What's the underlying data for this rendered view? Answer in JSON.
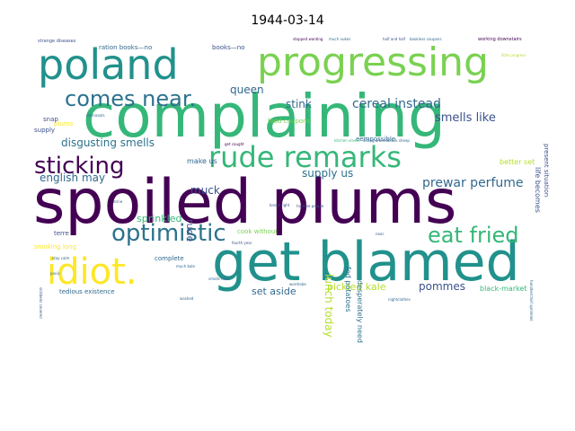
{
  "chart_data": {
    "type": "wordcloud",
    "title": "1944-03-14",
    "background": "#ffffff",
    "words": [
      {
        "text": "complaining",
        "weight": 100,
        "color": "#35b779"
      },
      {
        "text": "spoiled plums",
        "weight": 98,
        "color": "#440154"
      },
      {
        "text": "get blamed",
        "weight": 88,
        "color": "#21918c"
      },
      {
        "text": "progressing",
        "weight": 62,
        "color": "#7ad151"
      },
      {
        "text": "poland",
        "weight": 62,
        "color": "#21918c"
      },
      {
        "text": "rude remarks",
        "weight": 55,
        "color": "#35b779"
      },
      {
        "text": "idiot.",
        "weight": 52,
        "color": "#fde725"
      },
      {
        "text": "optimistic",
        "weight": 45,
        "color": "#2c728e"
      },
      {
        "text": "sticking",
        "weight": 42,
        "color": "#440154"
      },
      {
        "text": "eat fried",
        "weight": 40,
        "color": "#35b779"
      },
      {
        "text": "comes near.",
        "weight": 38,
        "color": "#2c728e"
      },
      {
        "text": "prewar perfume",
        "weight": 28,
        "color": "#31688e"
      },
      {
        "text": "cereal instead",
        "weight": 26,
        "color": "#31688e"
      },
      {
        "text": "smells like",
        "weight": 24,
        "color": "#3b528b"
      },
      {
        "text": "disgusting smells",
        "weight": 22,
        "color": "#2c728e"
      },
      {
        "text": "pommes",
        "weight": 22,
        "color": "#3b528b"
      },
      {
        "text": "english may",
        "weight": 21,
        "color": "#31688e"
      },
      {
        "text": "lunch today",
        "weight": 21,
        "color": "#b5de2b"
      },
      {
        "text": "muck",
        "weight": 21,
        "color": "#3b528b"
      },
      {
        "text": "stink",
        "weight": 20,
        "color": "#31688e"
      },
      {
        "text": "queen",
        "weight": 20,
        "color": "#31688e"
      },
      {
        "text": "supply us",
        "weight": 19,
        "color": "#2c728e"
      },
      {
        "text": "set aside",
        "weight": 19,
        "color": "#31688e"
      },
      {
        "text": "pickled kale",
        "weight": 19,
        "color": "#b5de2b"
      },
      {
        "text": "sprinkled",
        "weight": 18,
        "color": "#35b779"
      },
      {
        "text": "rude",
        "weight": 18,
        "color": "#3b528b"
      },
      {
        "text": "fed potatoes",
        "weight": 12,
        "color": "#2c728e"
      },
      {
        "text": "desperately need",
        "weight": 12,
        "color": "#2c728e"
      },
      {
        "text": "make us",
        "weight": 10,
        "color": "#31688e"
      },
      {
        "text": "better set",
        "weight": 11,
        "color": "#b5de2b"
      },
      {
        "text": "life becomes",
        "weight": 11,
        "color": "#3b528b"
      },
      {
        "text": "present situation",
        "weight": 10,
        "color": "#3b528b"
      },
      {
        "text": "black-market",
        "weight": 11,
        "color": "#35b779"
      },
      {
        "text": "tedious existence",
        "weight": 11,
        "color": "#31688e"
      },
      {
        "text": "smoking long",
        "weight": 11,
        "color": "#fde725"
      },
      {
        "text": "complete",
        "weight": 11,
        "color": "#31688e"
      },
      {
        "text": "terre",
        "weight": 11,
        "color": "#3b528b"
      },
      {
        "text": "cook without",
        "weight": 10,
        "color": "#7ad151"
      },
      {
        "text": "food coupons",
        "weight": 10,
        "color": "#7ad151"
      },
      {
        "text": "eempossible",
        "weight": 10,
        "color": "#31688e"
      },
      {
        "text": "ration books—no",
        "weight": 9,
        "color": "#31688e"
      },
      {
        "text": "books—no",
        "weight": 9,
        "color": "#3b528b"
      },
      {
        "text": "plums",
        "weight": 10,
        "color": "#fde725"
      },
      {
        "text": "snap",
        "weight": 10,
        "color": "#3b528b"
      },
      {
        "text": "supply",
        "weight": 10,
        "color": "#3b528b"
      },
      {
        "text": "strange diseases",
        "weight": 6,
        "color": "#3b528b"
      },
      {
        "text": "stopped wanting",
        "weight": 5,
        "color": "#440154"
      },
      {
        "text": "much nukes",
        "weight": 5,
        "color": "#31688e"
      },
      {
        "text": "half and half",
        "weight": 5,
        "color": "#3b528b"
      },
      {
        "text": "bookless coupons",
        "weight": 5,
        "color": "#31688e"
      },
      {
        "text": "working downstairs",
        "weight": 6,
        "color": "#440154"
      },
      {
        "text": "kitchen smells",
        "weight": 5,
        "color": "#35b779"
      },
      {
        "text": "sitting around",
        "weight": 5,
        "color": "#31688e"
      },
      {
        "text": "black sheep",
        "weight": 5,
        "color": "#31688e"
      },
      {
        "text": "bread right",
        "weight": 5,
        "color": "#3b528b"
      },
      {
        "text": "horrible people",
        "weight": 5,
        "color": "#3b528b"
      },
      {
        "text": "fourth year",
        "weight": 5,
        "color": "#3b528b"
      },
      {
        "text": "smells nose",
        "weight": 5,
        "color": "#31688e"
      },
      {
        "text": "much bale",
        "weight": 5,
        "color": "#31688e"
      },
      {
        "text": "washed",
        "weight": 5,
        "color": "#31688e"
      },
      {
        "text": "panic",
        "weight": 5,
        "color": "#31688e"
      },
      {
        "text": "stay calm",
        "weight": 5,
        "color": "#31688e"
      },
      {
        "text": "dismissals",
        "weight": 5,
        "color": "#31688e"
      },
      {
        "text": "little progress",
        "weight": 5,
        "color": "#b5de2b"
      },
      {
        "text": "get caught",
        "weight": 5,
        "color": "#440154"
      },
      {
        "text": "handkerchief sprinkled",
        "weight": 5,
        "color": "#31688e"
      },
      {
        "text": "sickbeds covered",
        "weight": 5,
        "color": "#3b528b"
      },
      {
        "text": "nightclothes",
        "weight": 5,
        "color": "#31688e"
      },
      {
        "text": "wardrobe",
        "weight": 5,
        "color": "#31688e"
      },
      {
        "text": "near.",
        "weight": 5,
        "color": "#3b528b"
      },
      {
        "text": "brine",
        "weight": 5,
        "color": "#3b528b"
      }
    ]
  }
}
